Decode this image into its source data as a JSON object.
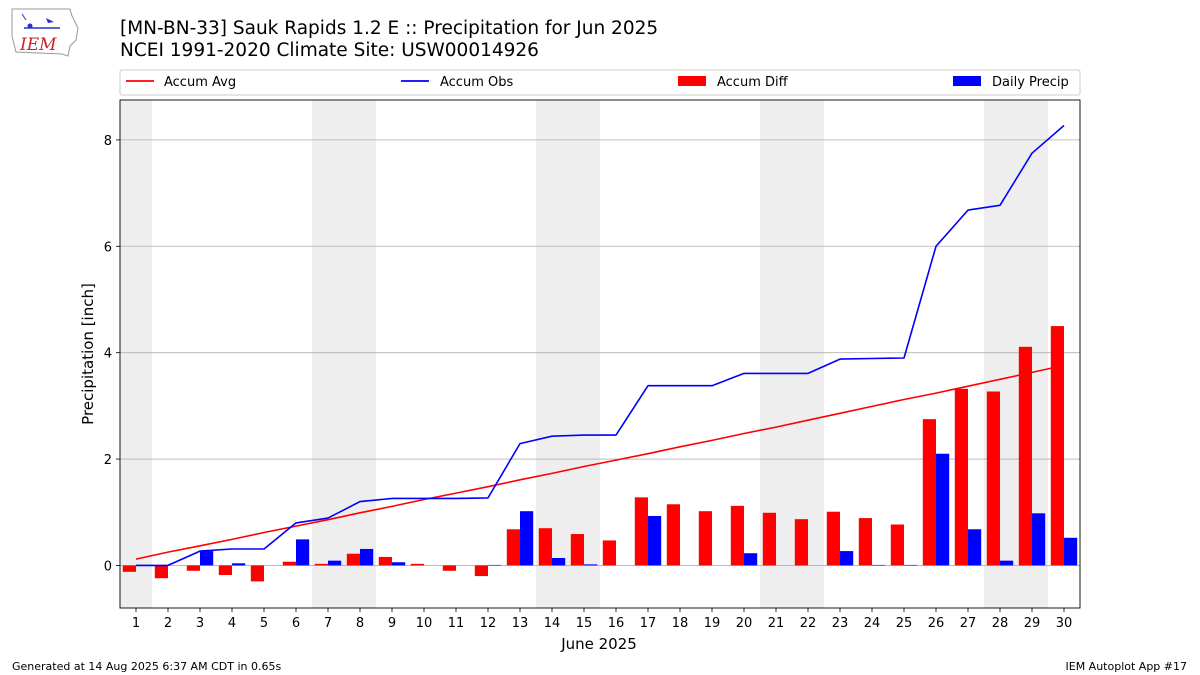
{
  "header": {
    "logo_text": "IEM",
    "title_line1": "[MN-BN-33] Sauk Rapids 1.2 E :: Precipitation for Jun 2025",
    "title_line2": "NCEI 1991-2020 Climate Site: USW00014926"
  },
  "footer": {
    "generated": "Generated at 14 Aug 2025 6:37 AM CDT in 0.65s",
    "app": "IEM Autoplot App #17"
  },
  "colors": {
    "accum_avg": "#ff0000",
    "accum_obs": "#0000ff",
    "accum_diff": "#ff0000",
    "daily_precip": "#0000ff",
    "weekend_band": "#eeeeee",
    "grid": "#b0b0b0"
  },
  "chart_data": {
    "type": "bar",
    "title": "[MN-BN-33] Sauk Rapids 1.2 E :: Precipitation for Jun 2025",
    "subtitle": "NCEI 1991-2020 Climate Site: USW00014926",
    "xlabel": "June 2025",
    "ylabel": "Precipitation [inch]",
    "ylim": [
      -0.8,
      8.75
    ],
    "yticks": [
      0,
      2,
      4,
      6,
      8
    ],
    "grid": "horizontal",
    "legend_placement": "top, above plot",
    "categories": [
      "1",
      "2",
      "3",
      "4",
      "5",
      "6",
      "7",
      "8",
      "9",
      "10",
      "11",
      "12",
      "13",
      "14",
      "15",
      "16",
      "17",
      "18",
      "19",
      "20",
      "21",
      "22",
      "23",
      "24",
      "25",
      "26",
      "27",
      "28",
      "29",
      "30"
    ],
    "shaded_days": [
      1,
      7,
      8,
      14,
      15,
      21,
      22,
      28,
      29
    ],
    "series": [
      {
        "name": "Accum Avg",
        "kind": "line",
        "values": [
          0.12,
          0.25,
          0.37,
          0.49,
          0.62,
          0.74,
          0.86,
          0.99,
          1.11,
          1.24,
          1.36,
          1.48,
          1.61,
          1.73,
          1.86,
          1.98,
          2.1,
          2.23,
          2.35,
          2.48,
          2.6,
          2.73,
          2.86,
          2.99,
          3.12,
          3.24,
          3.37,
          3.5,
          3.63,
          3.76
        ]
      },
      {
        "name": "Accum Obs",
        "kind": "line",
        "values": [
          0.0,
          0.0,
          0.27,
          0.31,
          0.31,
          0.8,
          0.89,
          1.2,
          1.26,
          1.26,
          1.26,
          1.27,
          2.29,
          2.43,
          2.45,
          2.45,
          3.38,
          3.38,
          3.38,
          3.61,
          3.61,
          3.61,
          3.88,
          3.89,
          3.9,
          6.0,
          6.68,
          6.77,
          7.75,
          8.27
        ]
      },
      {
        "name": "Accum Diff",
        "kind": "bar",
        "values": [
          -0.12,
          -0.24,
          -0.1,
          -0.18,
          -0.3,
          0.07,
          0.03,
          0.22,
          0.16,
          0.03,
          -0.1,
          -0.2,
          0.68,
          0.7,
          0.59,
          0.47,
          1.28,
          1.15,
          1.02,
          1.12,
          0.99,
          0.87,
          1.01,
          0.89,
          0.77,
          2.75,
          3.32,
          3.27,
          4.11,
          4.5
        ]
      },
      {
        "name": "Daily Precip",
        "kind": "bar",
        "values": [
          0.01,
          0.0,
          0.27,
          0.04,
          0.0,
          0.49,
          0.09,
          0.31,
          0.06,
          0.0,
          0.0,
          0.01,
          1.02,
          0.14,
          0.02,
          0.0,
          0.93,
          0.0,
          0.0,
          0.23,
          0.0,
          0.0,
          0.27,
          0.01,
          0.01,
          2.1,
          0.68,
          0.09,
          0.98,
          0.52
        ]
      }
    ]
  }
}
